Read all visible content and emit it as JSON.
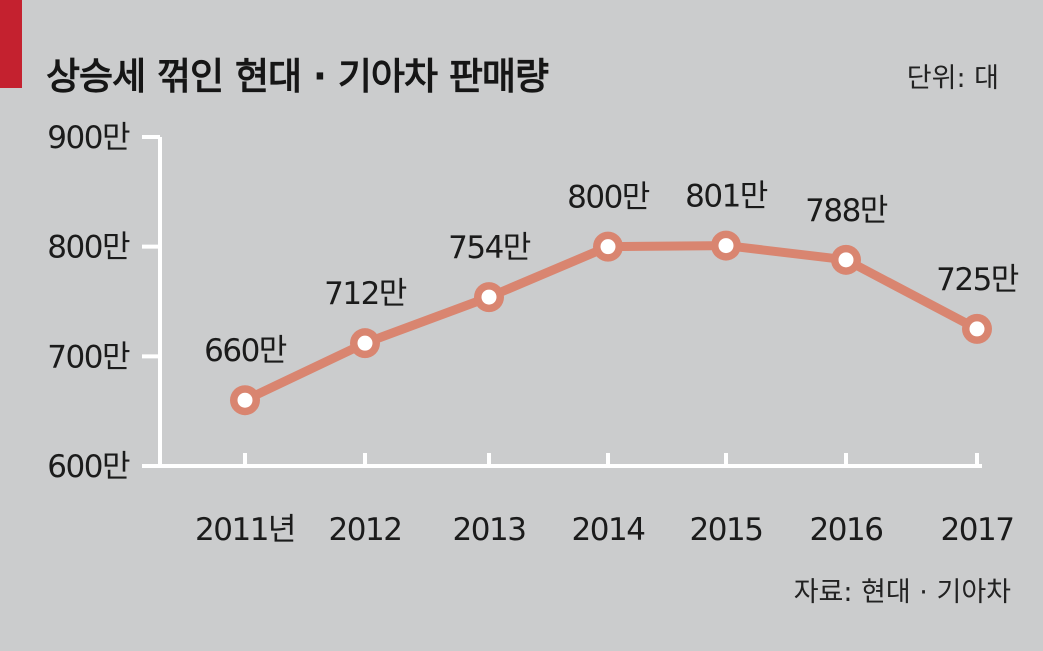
{
  "header": {
    "title": "상승세 꺾인 현대 · 기아차 판매량",
    "unit": "단위: 대"
  },
  "footer": {
    "source": "자료:  현대 · 기아차"
  },
  "colors": {
    "background": "#cbcccd",
    "accent": "#c4212f",
    "line": "#d98570",
    "axis": "#ffffff",
    "marker_fill": "#ffffff"
  },
  "chart_data": {
    "type": "line",
    "title": "상승세 꺾인 현대 · 기아차 판매량",
    "xlabel": "",
    "ylabel": "",
    "categories": [
      "2011년",
      "2012",
      "2013",
      "2014",
      "2015",
      "2016",
      "2017"
    ],
    "series": [
      {
        "values": [
          660,
          712,
          754,
          800,
          801,
          788,
          725
        ],
        "labels": [
          "660만",
          "712만",
          "754만",
          "800만",
          "801만",
          "788만",
          "725만"
        ]
      }
    ],
    "ylim": [
      600,
      900
    ],
    "yticks": [
      600,
      700,
      800,
      900
    ],
    "ytick_labels": [
      "600만",
      "700만",
      "800만",
      "900만"
    ],
    "grid": false,
    "legend": "none"
  }
}
